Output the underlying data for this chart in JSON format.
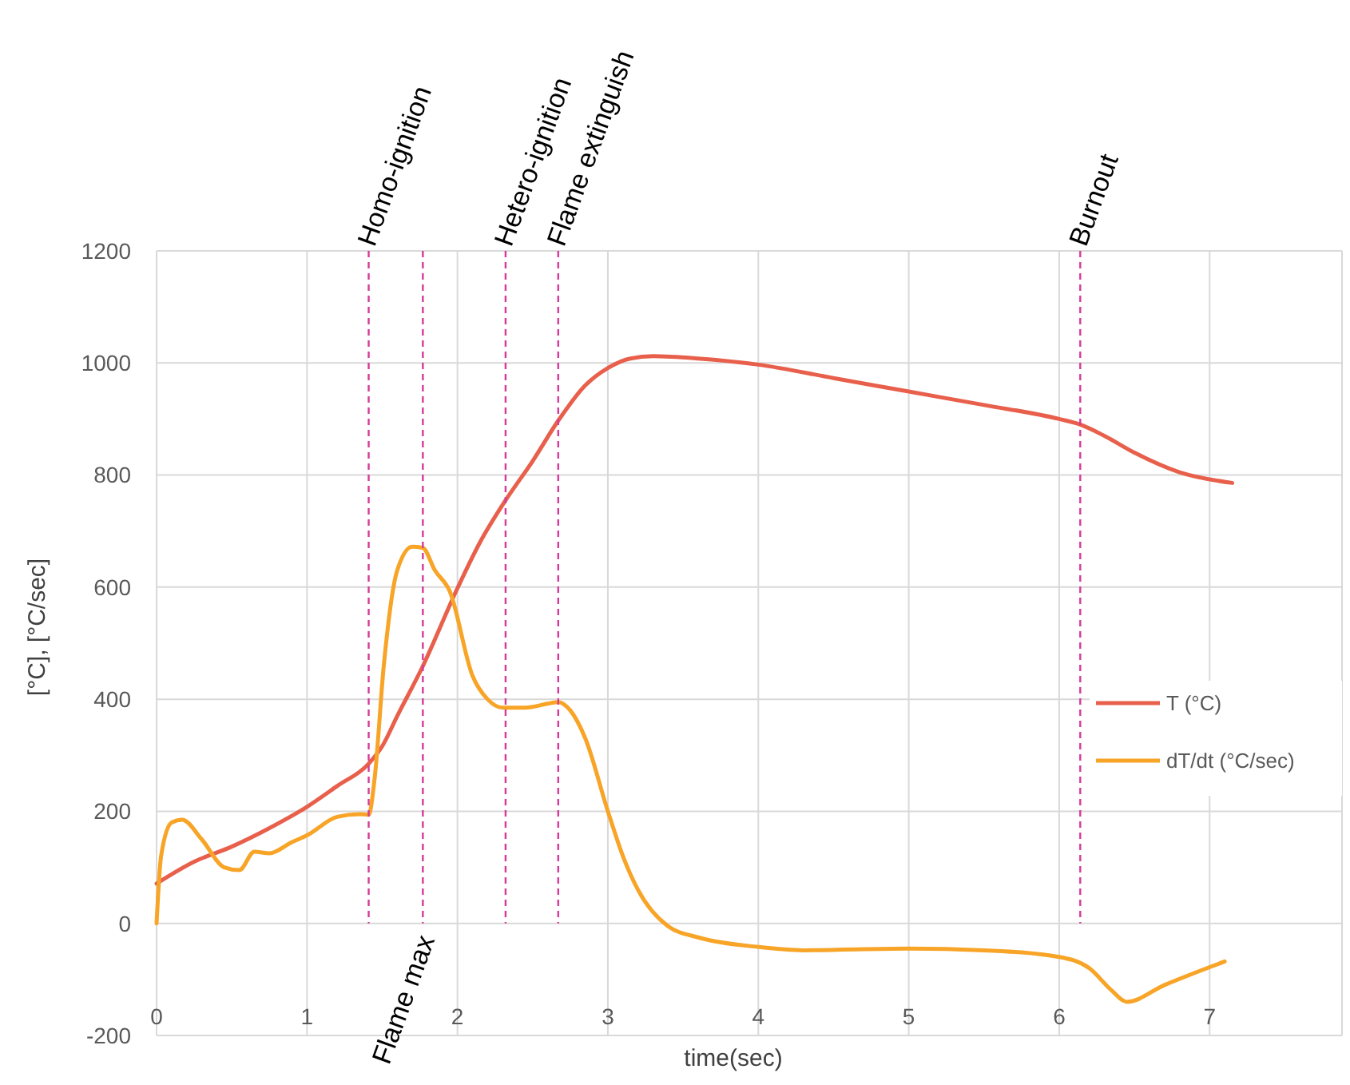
{
  "chart_data": {
    "type": "line",
    "xlabel": "time(sec)",
    "ylabel": "[°C], [°C/sec]",
    "xlim": [
      0,
      7.88
    ],
    "xticks": [
      0,
      1,
      2,
      3,
      4,
      5,
      6,
      7
    ],
    "ylim": [
      -200,
      1200
    ],
    "yticks": [
      -200,
      0,
      200,
      400,
      600,
      800,
      1000,
      1200
    ],
    "grid": true,
    "legend": "right",
    "line_style": "solid",
    "marker": "none",
    "series": [
      {
        "name": "T (°C)",
        "color": "#e8604c",
        "x": [
          0,
          0.25,
          0.5,
          0.75,
          1,
          1.2,
          1.41,
          1.5,
          1.6,
          1.77,
          2,
          2.15,
          2.32,
          2.5,
          2.67,
          2.85,
          3,
          3.15,
          3.3,
          3.6,
          4,
          4.5,
          5,
          5.5,
          6,
          6.14,
          6.3,
          6.5,
          6.8,
          7.15
        ],
        "values": [
          71,
          110,
          137,
          170,
          208,
          245,
          285,
          316,
          370,
          459,
          598,
          680,
          755,
          825,
          897,
          960,
          991,
          1008,
          1012,
          1008,
          997,
          973,
          949,
          925,
          900,
          890,
          870,
          840,
          805,
          786
        ]
      },
      {
        "name": "dT/dt (°C/sec)",
        "color": "#f7a427",
        "x": [
          0,
          0.03,
          0.1,
          0.17,
          0.3,
          0.45,
          0.55,
          0.65,
          0.75,
          0.9,
          1,
          1.2,
          1.35,
          1.41,
          1.45,
          1.51,
          1.6,
          1.7,
          1.77,
          1.85,
          1.95,
          2.1,
          2.2,
          2.3,
          2.45,
          2.6,
          2.67,
          2.75,
          2.85,
          3,
          3.1,
          3.2,
          3.4,
          3.6,
          4,
          4.3,
          5,
          5.5,
          6,
          6.2,
          6.35,
          6.45,
          6.7,
          7.1
        ],
        "values": [
          0,
          120,
          180,
          185,
          150,
          100,
          95,
          128,
          125,
          145,
          157,
          190,
          195,
          194,
          260,
          459,
          630,
          672,
          670,
          630,
          592,
          442,
          400,
          385,
          385,
          392,
          395,
          380,
          330,
          200,
          120,
          60,
          -5,
          -25,
          -42,
          -48,
          -45,
          -48,
          -60,
          -80,
          -120,
          -140,
          -110,
          -68
        ]
      }
    ],
    "ref_lines": [
      {
        "axis": "x",
        "value": 1.41,
        "label": "Homo-ignition",
        "color": "#d6399a",
        "line_style": "dashed"
      },
      {
        "axis": "x",
        "value": 1.77,
        "label": "Flame max",
        "color": "#d6399a",
        "line_style": "dashed"
      },
      {
        "axis": "x",
        "value": 2.32,
        "label": "Hetero-ignition",
        "color": "#d6399a",
        "line_style": "dashed"
      },
      {
        "axis": "x",
        "value": 2.67,
        "label": "Flame extinguish",
        "color": "#d6399a",
        "line_style": "dashed"
      },
      {
        "axis": "x",
        "value": 6.14,
        "label": "Burnout",
        "color": "#d6399a",
        "line_style": "dashed"
      }
    ]
  }
}
